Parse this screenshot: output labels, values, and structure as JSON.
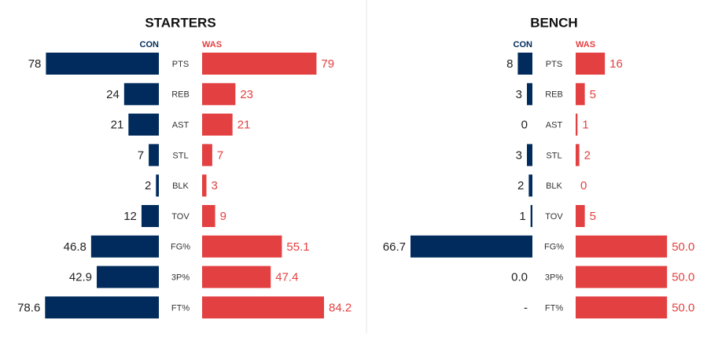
{
  "chart_data": [
    {
      "type": "bar",
      "title": "STARTERS",
      "categories": [
        "PTS",
        "REB",
        "AST",
        "STL",
        "BLK",
        "TOV",
        "FG%",
        "3P%",
        "FT%"
      ],
      "series": [
        {
          "name": "CON",
          "color": "#002b5c",
          "values": [
            78,
            24,
            21,
            7,
            2,
            12,
            46.8,
            42.9,
            78.6
          ]
        },
        {
          "name": "WAS",
          "color": "#e34041",
          "values": [
            79,
            23,
            21,
            7,
            3,
            9,
            55.1,
            47.4,
            84.2
          ]
        }
      ]
    },
    {
      "type": "bar",
      "title": "BENCH",
      "categories": [
        "PTS",
        "REB",
        "AST",
        "STL",
        "BLK",
        "TOV",
        "FG%",
        "3P%",
        "FT%"
      ],
      "series": [
        {
          "name": "CON",
          "color": "#002b5c",
          "values": [
            8,
            3,
            0,
            3,
            2,
            1,
            66.7,
            0,
            null
          ],
          "value_labels": [
            "8",
            "3",
            "0",
            "3",
            "2",
            "1",
            "66.7",
            "0.0",
            "-"
          ]
        },
        {
          "name": "WAS",
          "color": "#e34041",
          "values": [
            16,
            5,
            1,
            2,
            0,
            5,
            50,
            50,
            50
          ],
          "value_labels": [
            "16",
            "5",
            "1",
            "2",
            "0",
            "5",
            "50.0",
            "50.0",
            "50.0"
          ]
        }
      ]
    }
  ]
}
